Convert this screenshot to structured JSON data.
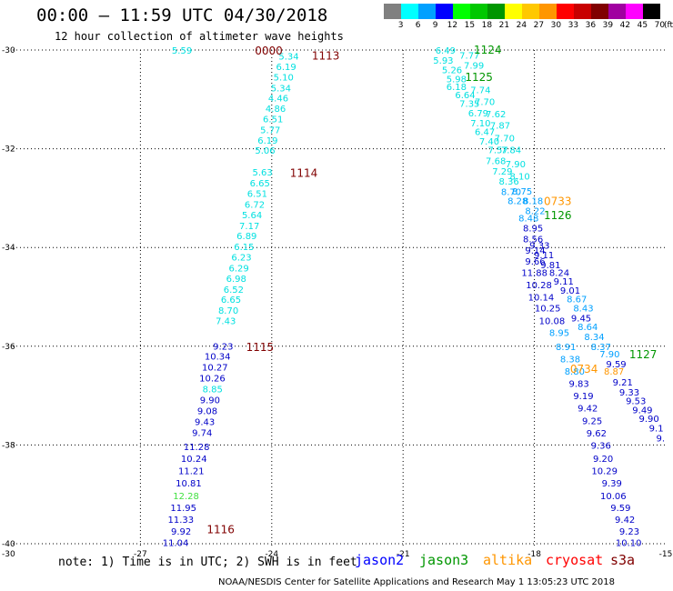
{
  "title": "00:00 – 11:59 UTC 04/30/2018",
  "subtitle": "12 hour collection of altimeter wave heights",
  "note": "note: 1) Time is in UTC; 2) SWH is in feet",
  "credit": "NOAA/NESDIS Center for Satellite Applications and Research    May  1 13:05:23 UTC 2018",
  "legend": {
    "unit": "(ft)",
    "items": [
      {
        "label": "3",
        "color": "#808080"
      },
      {
        "label": "6",
        "color": "#00ffff"
      },
      {
        "label": "9",
        "color": "#00a0ff"
      },
      {
        "label": "12",
        "color": "#0000ff"
      },
      {
        "label": "15",
        "color": "#00ff00"
      },
      {
        "label": "18",
        "color": "#00c800"
      },
      {
        "label": "21",
        "color": "#009600"
      },
      {
        "label": "24",
        "color": "#ffff00"
      },
      {
        "label": "27",
        "color": "#ffc800"
      },
      {
        "label": "30",
        "color": "#ff9600"
      },
      {
        "label": "33",
        "color": "#ff0000"
      },
      {
        "label": "36",
        "color": "#c80000"
      },
      {
        "label": "39",
        "color": "#800000"
      },
      {
        "label": "42",
        "color": "#a000a0"
      },
      {
        "label": "45",
        "color": "#ff00ff"
      },
      {
        "label": "70",
        "color": "#000000"
      }
    ]
  },
  "satellites": [
    {
      "name": "jason2",
      "color": "#0000ff"
    },
    {
      "name": "jason3",
      "color": "#009600"
    },
    {
      "name": "altika",
      "color": "#ff9600"
    },
    {
      "name": "cryosat",
      "color": "#ff0000"
    },
    {
      "name": "s3a",
      "color": "#800000"
    }
  ],
  "axes": {
    "lon_ticks": [
      "-27",
      "-24",
      "-21",
      "-18",
      "-15"
    ],
    "lat_ticks": [
      "-30",
      "-32",
      "-34",
      "-36",
      "-38",
      "-40"
    ],
    "corner_label": "-30"
  },
  "map_data": {
    "lon_range": [
      -30,
      -15
    ],
    "lat_range": [
      -40,
      -30
    ],
    "tracks": [
      {
        "name": "track-west",
        "color": "#00e0e0",
        "times": [
          {
            "label": "0000",
            "lat": -30.0,
            "color": "#800000"
          },
          {
            "label": "1113",
            "lat": -30.1,
            "color": "#800000"
          },
          {
            "label": "1114",
            "lat": -32.48,
            "color": "#800000"
          },
          {
            "label": "1115",
            "lat": -36.0,
            "color": "#800000"
          },
          {
            "label": "1116",
            "lat": -39.7,
            "color": "#800000"
          }
        ],
        "points": [
          {
            "v": "5.59",
            "lon": -25.82,
            "lat": -30.0,
            "c": "#00e0e0"
          },
          {
            "v": "5.34",
            "lon": -23.38,
            "lat": -30.12,
            "c": "#00e0e0"
          },
          {
            "v": "6.19",
            "lon": -23.44,
            "lat": -30.33,
            "c": "#00e0e0"
          },
          {
            "v": "5.10",
            "lon": -23.5,
            "lat": -30.54,
            "c": "#00e0e0"
          },
          {
            "v": "5.34",
            "lon": -23.56,
            "lat": -30.76,
            "c": "#00e0e0"
          },
          {
            "v": "4.46",
            "lon": -23.62,
            "lat": -30.97,
            "c": "#00e0e0"
          },
          {
            "v": "4.86",
            "lon": -23.68,
            "lat": -31.18,
            "c": "#00e0e0"
          },
          {
            "v": "6.51",
            "lon": -23.74,
            "lat": -31.39,
            "c": "#00e0e0"
          },
          {
            "v": "5.77",
            "lon": -23.8,
            "lat": -31.61,
            "c": "#00e0e0"
          },
          {
            "v": "6.19",
            "lon": -23.86,
            "lat": -31.82,
            "c": "#00e0e0"
          },
          {
            "v": "5.06",
            "lon": -23.92,
            "lat": -32.03,
            "c": "#00e0e0"
          },
          {
            "v": "5.63",
            "lon": -23.98,
            "lat": -32.47,
            "c": "#00e0e0"
          },
          {
            "v": "6.65",
            "lon": -24.04,
            "lat": -32.69,
            "c": "#00e0e0"
          },
          {
            "v": "6.51",
            "lon": -24.1,
            "lat": -32.9,
            "c": "#00e0e0"
          },
          {
            "v": "6.72",
            "lon": -24.16,
            "lat": -33.12,
            "c": "#00e0e0"
          },
          {
            "v": "5.64",
            "lon": -24.22,
            "lat": -33.33,
            "c": "#00e0e0"
          },
          {
            "v": "7.17",
            "lon": -24.28,
            "lat": -33.55,
            "c": "#00e0e0"
          },
          {
            "v": "6.89",
            "lon": -24.34,
            "lat": -33.76,
            "c": "#00e0e0"
          },
          {
            "v": "6.15",
            "lon": -24.4,
            "lat": -33.98,
            "c": "#00e0e0"
          },
          {
            "v": "6.23",
            "lon": -24.46,
            "lat": -34.19,
            "c": "#00e0e0"
          },
          {
            "v": "6.29",
            "lon": -24.52,
            "lat": -34.41,
            "c": "#00e0e0"
          },
          {
            "v": "6.98",
            "lon": -24.58,
            "lat": -34.62,
            "c": "#00e0e0"
          },
          {
            "v": "6.52",
            "lon": -24.64,
            "lat": -34.84,
            "c": "#00e0e0"
          },
          {
            "v": "6.65",
            "lon": -24.7,
            "lat": -35.05,
            "c": "#00e0e0"
          },
          {
            "v": "8.70",
            "lon": -24.76,
            "lat": -35.27,
            "c": "#00e0e0"
          },
          {
            "v": "7.43",
            "lon": -24.82,
            "lat": -35.48,
            "c": "#00e0e0"
          },
          {
            "v": "9.23",
            "lon": -24.88,
            "lat": -35.99,
            "c": "#0000c8"
          },
          {
            "v": "10.34",
            "lon": -24.94,
            "lat": -36.2,
            "c": "#0000c8"
          },
          {
            "v": "10.27",
            "lon": -25.0,
            "lat": -36.42,
            "c": "#0000c8"
          },
          {
            "v": "10.26",
            "lon": -25.06,
            "lat": -36.64,
            "c": "#0000c8"
          },
          {
            "v": "8.85",
            "lon": -25.12,
            "lat": -36.86,
            "c": "#00e0e0"
          },
          {
            "v": "9.90",
            "lon": -25.18,
            "lat": -37.08,
            "c": "#0000c8"
          },
          {
            "v": "9.08",
            "lon": -25.24,
            "lat": -37.3,
            "c": "#0000c8"
          },
          {
            "v": "9.43",
            "lon": -25.3,
            "lat": -37.52,
            "c": "#0000c8"
          },
          {
            "v": "9.74",
            "lon": -25.36,
            "lat": -37.74,
            "c": "#0000c8"
          },
          {
            "v": "11.28",
            "lon": -25.42,
            "lat": -38.03,
            "c": "#0000c8"
          },
          {
            "v": "10.24",
            "lon": -25.48,
            "lat": -38.27,
            "c": "#0000c8"
          },
          {
            "v": "11.21",
            "lon": -25.54,
            "lat": -38.52,
            "c": "#0000c8"
          },
          {
            "v": "10.81",
            "lon": -25.6,
            "lat": -38.77,
            "c": "#0000c8"
          },
          {
            "v": "12.28",
            "lon": -25.66,
            "lat": -39.02,
            "c": "#40e040"
          },
          {
            "v": "11.95",
            "lon": -25.72,
            "lat": -39.26,
            "c": "#0000c8"
          },
          {
            "v": "11.33",
            "lon": -25.78,
            "lat": -39.5,
            "c": "#0000c8"
          },
          {
            "v": "9.92",
            "lon": -25.84,
            "lat": -39.74,
            "c": "#0000c8"
          },
          {
            "v": "11.04",
            "lon": -25.9,
            "lat": -39.97,
            "c": "#0000c8"
          }
        ]
      },
      {
        "name": "track-jason3",
        "color": "#009600",
        "times": [
          {
            "label": "1124",
            "lat": -29.98,
            "color": "#009600"
          },
          {
            "label": "1125",
            "lat": -30.53,
            "color": "#009600"
          },
          {
            "label": "1126",
            "lat": -33.33,
            "color": "#009600"
          },
          {
            "label": "1127",
            "lat": -36.15,
            "color": "#009600"
          }
        ],
        "points": [
          {
            "v": "6.49",
            "lon": -19.8,
            "lat": -30.0,
            "c": "#00e0e0"
          },
          {
            "v": "7.77",
            "lon": -19.25,
            "lat": -30.1,
            "c": "#00e0e0"
          },
          {
            "v": "5.93",
            "lon": -19.85,
            "lat": -30.2,
            "c": "#00e0e0"
          },
          {
            "v": "7.99",
            "lon": -19.15,
            "lat": -30.3,
            "c": "#00e0e0"
          },
          {
            "v": "5.26",
            "lon": -19.65,
            "lat": -30.4,
            "c": "#00e0e0"
          },
          {
            "v": "5.98",
            "lon": -19.55,
            "lat": -30.58,
            "c": "#00e0e0"
          },
          {
            "v": "7.74",
            "lon": -19.0,
            "lat": -30.8,
            "c": "#00e0e0"
          },
          {
            "v": "6.18",
            "lon": -19.55,
            "lat": -30.74,
            "c": "#00e0e0"
          },
          {
            "v": "6.64",
            "lon": -19.35,
            "lat": -30.9,
            "c": "#00e0e0"
          },
          {
            "v": "7.70",
            "lon": -18.9,
            "lat": -31.04,
            "c": "#00e0e0"
          },
          {
            "v": "7.35",
            "lon": -19.25,
            "lat": -31.08,
            "c": "#00e0e0"
          },
          {
            "v": "6.79",
            "lon": -19.05,
            "lat": -31.27,
            "c": "#00e0e0"
          },
          {
            "v": "7.62",
            "lon": -18.65,
            "lat": -31.29,
            "c": "#00e0e0"
          },
          {
            "v": "7.10",
            "lon": -19.0,
            "lat": -31.47,
            "c": "#00e0e0"
          },
          {
            "v": "7.87",
            "lon": -18.55,
            "lat": -31.52,
            "c": "#00e0e0"
          },
          {
            "v": "6.47",
            "lon": -18.9,
            "lat": -31.65,
            "c": "#00e0e0"
          },
          {
            "v": "7.70",
            "lon": -18.45,
            "lat": -31.78,
            "c": "#00e0e0"
          },
          {
            "v": "7.40",
            "lon": -18.8,
            "lat": -31.84,
            "c": "#00e0e0"
          },
          {
            "v": "7.84",
            "lon": -18.3,
            "lat": -32.02,
            "c": "#00e0e0"
          },
          {
            "v": "7.57",
            "lon": -18.6,
            "lat": -32.02,
            "c": "#00e0e0"
          },
          {
            "v": "7.68",
            "lon": -18.65,
            "lat": -32.24,
            "c": "#00e0e0"
          },
          {
            "v": "7.90",
            "lon": -18.2,
            "lat": -32.3,
            "c": "#00e0e0"
          },
          {
            "v": "7.29",
            "lon": -18.5,
            "lat": -32.45,
            "c": "#00e0e0"
          },
          {
            "v": "8.10",
            "lon": -18.1,
            "lat": -32.55,
            "c": "#00e0e0"
          },
          {
            "v": "8.36",
            "lon": -18.35,
            "lat": -32.65,
            "c": "#00e0e0"
          },
          {
            "v": "8.70",
            "lon": -18.3,
            "lat": -32.86,
            "c": "#00a0ff"
          },
          {
            "v": "8.75",
            "lon": -18.05,
            "lat": -32.85,
            "c": "#00a0ff"
          },
          {
            "v": "8.28",
            "lon": -18.15,
            "lat": -33.05,
            "c": "#00a0ff"
          },
          {
            "v": "8.18",
            "lon": -17.8,
            "lat": -33.05,
            "c": "#00a0ff"
          },
          {
            "v": "8.22",
            "lon": -17.75,
            "lat": -33.25,
            "c": "#00a0ff"
          },
          {
            "v": "8.48",
            "lon": -17.9,
            "lat": -33.4,
            "c": "#00a0ff"
          },
          {
            "v": "8.95",
            "lon": -17.8,
            "lat": -33.6,
            "c": "#0000c8"
          },
          {
            "v": "8.56",
            "lon": -17.8,
            "lat": -33.82,
            "c": "#0000c8"
          },
          {
            "v": "9.33",
            "lon": -17.65,
            "lat": -33.95,
            "c": "#0000c8"
          },
          {
            "v": "9.14",
            "lon": -17.75,
            "lat": -34.05,
            "c": "#0000c8"
          },
          {
            "v": "9.11",
            "lon": -17.55,
            "lat": -34.14,
            "c": "#0000c8"
          },
          {
            "v": "9.81",
            "lon": -17.4,
            "lat": -34.35,
            "c": "#0000c8"
          },
          {
            "v": "9.66",
            "lon": -17.75,
            "lat": -34.27,
            "c": "#0000c8"
          },
          {
            "v": "11.88",
            "lon": -17.7,
            "lat": -34.5,
            "c": "#0000c8"
          },
          {
            "v": "8.24",
            "lon": -17.2,
            "lat": -34.5,
            "c": "#0000c8"
          },
          {
            "v": "9.11",
            "lon": -17.1,
            "lat": -34.68,
            "c": "#0000c8"
          },
          {
            "v": "10.28",
            "lon": -17.6,
            "lat": -34.75,
            "c": "#0000c8"
          },
          {
            "v": "9.01",
            "lon": -16.95,
            "lat": -34.86,
            "c": "#0000c8"
          },
          {
            "v": "10.14",
            "lon": -17.55,
            "lat": -35.0,
            "c": "#0000c8"
          },
          {
            "v": "8.67",
            "lon": -16.8,
            "lat": -35.04,
            "c": "#00a0ff"
          },
          {
            "v": "10.25",
            "lon": -17.4,
            "lat": -35.22,
            "c": "#0000c8"
          },
          {
            "v": "8.43",
            "lon": -16.65,
            "lat": -35.22,
            "c": "#00a0ff"
          },
          {
            "v": "9.45",
            "lon": -16.7,
            "lat": -35.42,
            "c": "#0000c8"
          },
          {
            "v": "10.08",
            "lon": -17.3,
            "lat": -35.48,
            "c": "#0000c8"
          },
          {
            "v": "8.64",
            "lon": -16.55,
            "lat": -35.6,
            "c": "#00a0ff"
          },
          {
            "v": "8.95",
            "lon": -17.2,
            "lat": -35.72,
            "c": "#00a0ff"
          },
          {
            "v": "8.34",
            "lon": -16.4,
            "lat": -35.8,
            "c": "#00a0ff"
          },
          {
            "v": "8.91",
            "lon": -17.05,
            "lat": -36.0,
            "c": "#00a0ff"
          },
          {
            "v": "8.37",
            "lon": -16.25,
            "lat": -36.0,
            "c": "#00a0ff"
          },
          {
            "v": "7.90",
            "lon": -16.05,
            "lat": -36.15,
            "c": "#00a0ff"
          },
          {
            "v": "8.38",
            "lon": -16.95,
            "lat": -36.25,
            "c": "#00a0ff"
          }
        ]
      },
      {
        "name": "track-east",
        "color": "#0000c8",
        "times": [
          {
            "label": "0733",
            "lat": -33.05,
            "color": "#ff9600"
          },
          {
            "label": "0734",
            "lat": -36.45,
            "color": "#ff9600"
          }
        ],
        "points": [
          {
            "v": "9.59",
            "lon": -15.9,
            "lat": -36.35,
            "c": "#0000c8"
          },
          {
            "v": "8.80",
            "lon": -16.85,
            "lat": -36.5,
            "c": "#00a0ff"
          },
          {
            "v": "8.87",
            "lon": -15.95,
            "lat": -36.5,
            "c": "#ff9600"
          },
          {
            "v": "9.21",
            "lon": -15.75,
            "lat": -36.72,
            "c": "#0000c8"
          },
          {
            "v": "9.83",
            "lon": -16.75,
            "lat": -36.75,
            "c": "#0000c8"
          },
          {
            "v": "9.33",
            "lon": -15.6,
            "lat": -36.92,
            "c": "#0000c8"
          },
          {
            "v": "9.19",
            "lon": -16.65,
            "lat": -37.0,
            "c": "#0000c8"
          },
          {
            "v": "9.53",
            "lon": -15.45,
            "lat": -37.1,
            "c": "#0000c8"
          },
          {
            "v": "9.42",
            "lon": -16.55,
            "lat": -37.25,
            "c": "#0000c8"
          },
          {
            "v": "9.49",
            "lon": -15.3,
            "lat": -37.28,
            "c": "#0000c8"
          },
          {
            "v": "9.90",
            "lon": -15.15,
            "lat": -37.46,
            "c": "#0000c8"
          },
          {
            "v": "9.25",
            "lon": -16.45,
            "lat": -37.5,
            "c": "#0000c8"
          },
          {
            "v": "9.1",
            "lon": -15.05,
            "lat": -37.65,
            "c": "#0000c8"
          },
          {
            "v": "9.62",
            "lon": -16.35,
            "lat": -37.75,
            "c": "#0000c8"
          },
          {
            "v": "9.",
            "lon": -15.02,
            "lat": -37.85,
            "c": "#0000c8"
          },
          {
            "v": "9.36",
            "lon": -16.25,
            "lat": -38.0,
            "c": "#0000c8"
          },
          {
            "v": "9.20",
            "lon": -16.2,
            "lat": -38.27,
            "c": "#0000c8"
          },
          {
            "v": "10.29",
            "lon": -16.1,
            "lat": -38.52,
            "c": "#0000c8"
          },
          {
            "v": "9.39",
            "lon": -16.0,
            "lat": -38.77,
            "c": "#0000c8"
          },
          {
            "v": "10.06",
            "lon": -15.9,
            "lat": -39.02,
            "c": "#0000c8"
          },
          {
            "v": "9.59",
            "lon": -15.8,
            "lat": -39.26,
            "c": "#0000c8"
          },
          {
            "v": "9.42",
            "lon": -15.7,
            "lat": -39.5,
            "c": "#0000c8"
          },
          {
            "v": "9.23",
            "lon": -15.6,
            "lat": -39.74,
            "c": "#0000c8"
          },
          {
            "v": "10.10",
            "lon": -15.55,
            "lat": -39.97,
            "c": "#0000c8"
          }
        ]
      }
    ]
  }
}
